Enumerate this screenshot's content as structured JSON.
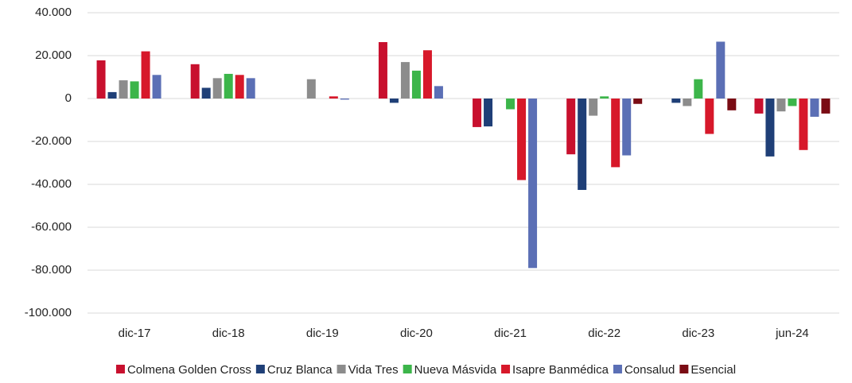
{
  "chart_data": {
    "type": "bar",
    "categories": [
      "dic-17",
      "dic-18",
      "dic-19",
      "dic-20",
      "dic-21",
      "dic-22",
      "dic-23",
      "jun-24"
    ],
    "series": [
      {
        "name": "Colmena Golden Cross",
        "color": "#c8102e",
        "values": [
          17800,
          16000,
          0,
          26300,
          -13300,
          -26000,
          0,
          -7000
        ]
      },
      {
        "name": "Cruz Blanca",
        "color": "#1f3f77",
        "values": [
          3000,
          5000,
          0,
          -2000,
          -13000,
          -42600,
          -2000,
          -27000
        ]
      },
      {
        "name": "Vida Tres",
        "color": "#8c8c8c",
        "values": [
          8500,
          9500,
          9000,
          17000,
          0,
          -8000,
          -3500,
          -6000
        ]
      },
      {
        "name": "Nueva Másvida",
        "color": "#3cb54a",
        "values": [
          8000,
          11500,
          0,
          13000,
          -5000,
          1000,
          9000,
          -3500
        ]
      },
      {
        "name": "Isapre Banmédica",
        "color": "#d7182a",
        "values": [
          22000,
          11000,
          1000,
          22500,
          -38000,
          -32000,
          -16500,
          -24000
        ]
      },
      {
        "name": "Consalud",
        "color": "#5b6fb5",
        "values": [
          11000,
          9500,
          -500,
          5800,
          -79000,
          -26500,
          26500,
          -8500
        ]
      },
      {
        "name": "Esencial",
        "color": "#7a0c14",
        "values": [
          null,
          null,
          null,
          null,
          null,
          -2500,
          -5500,
          -7000
        ]
      }
    ],
    "ylim": [
      -100000,
      40000
    ],
    "yticks": [
      {
        "value": -100000,
        "label": "-100.000"
      },
      {
        "value": -80000,
        "label": "-80.000"
      },
      {
        "value": -60000,
        "label": "-60.000"
      },
      {
        "value": -40000,
        "label": "-40.000"
      },
      {
        "value": -20000,
        "label": "-20.000"
      },
      0,
      {
        "value": 20000,
        "label": "20.000"
      },
      {
        "value": 40000,
        "label": "40.000"
      }
    ],
    "grid": true
  }
}
